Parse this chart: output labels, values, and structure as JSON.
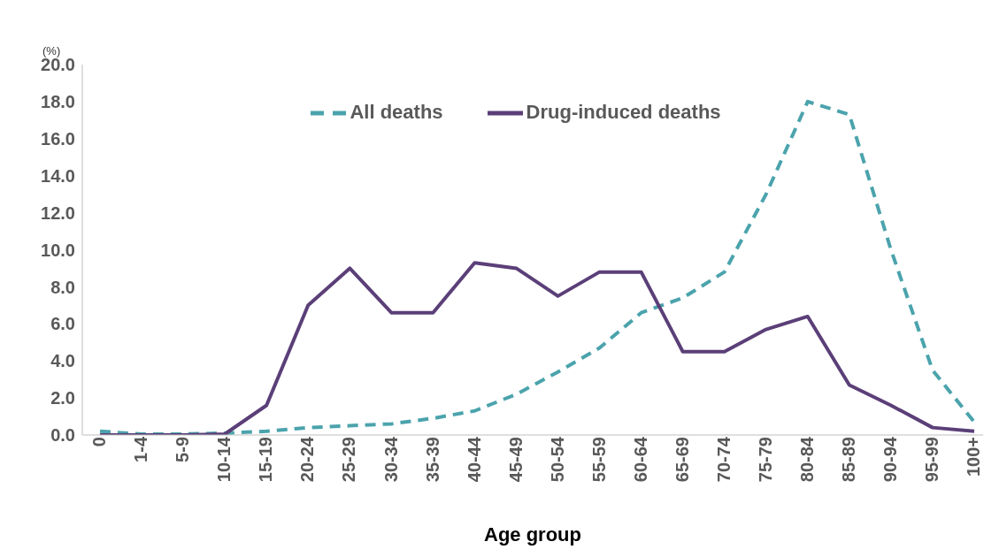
{
  "chart_data": {
    "type": "line",
    "ylabel": "(%)",
    "xlabel": "Age group",
    "categories": [
      "0",
      "1-4",
      "5-9",
      "10-14",
      "15-19",
      "20-24",
      "25-29",
      "30-34",
      "35-39",
      "40-44",
      "45-49",
      "50-54",
      "55-59",
      "60-64",
      "65-69",
      "70-74",
      "75-79",
      "80-84",
      "85-89",
      "90-94",
      "95-99",
      "100+"
    ],
    "series": [
      {
        "name": "All deaths",
        "color": "#4ba3ac",
        "line_style": "dashed",
        "values": [
          0.2,
          0.05,
          0.05,
          0.1,
          0.2,
          0.4,
          0.5,
          0.6,
          0.9,
          1.3,
          2.2,
          3.4,
          4.7,
          6.6,
          7.4,
          8.8,
          13.0,
          18.0,
          17.3,
          10.0,
          3.5,
          0.7
        ]
      },
      {
        "name": "Drug-induced deaths",
        "color": "#5b3f78",
        "line_style": "solid",
        "values": [
          0,
          0,
          0,
          0.05,
          1.6,
          7.0,
          9.0,
          6.6,
          6.6,
          9.3,
          9.0,
          7.5,
          8.8,
          8.8,
          4.5,
          4.5,
          5.7,
          6.4,
          2.7,
          1.6,
          0.4,
          0.2
        ]
      }
    ],
    "ylim": [
      0,
      20
    ],
    "yticks": [
      {
        "value": 0,
        "label": "0.0"
      },
      {
        "value": 2,
        "label": "2.0"
      },
      {
        "value": 4,
        "label": "4.0"
      },
      {
        "value": 6,
        "label": "6.0"
      },
      {
        "value": 8,
        "label": "8.0"
      },
      {
        "value": 10,
        "label": "10.0"
      },
      {
        "value": 12,
        "label": "12.0"
      },
      {
        "value": 14,
        "label": "14.0"
      },
      {
        "value": 16,
        "label": "16.0"
      },
      {
        "value": 18,
        "label": "18.0"
      },
      {
        "value": 20,
        "label": "20.0"
      }
    ],
    "grid": false,
    "legend": "top",
    "marker": "none"
  }
}
